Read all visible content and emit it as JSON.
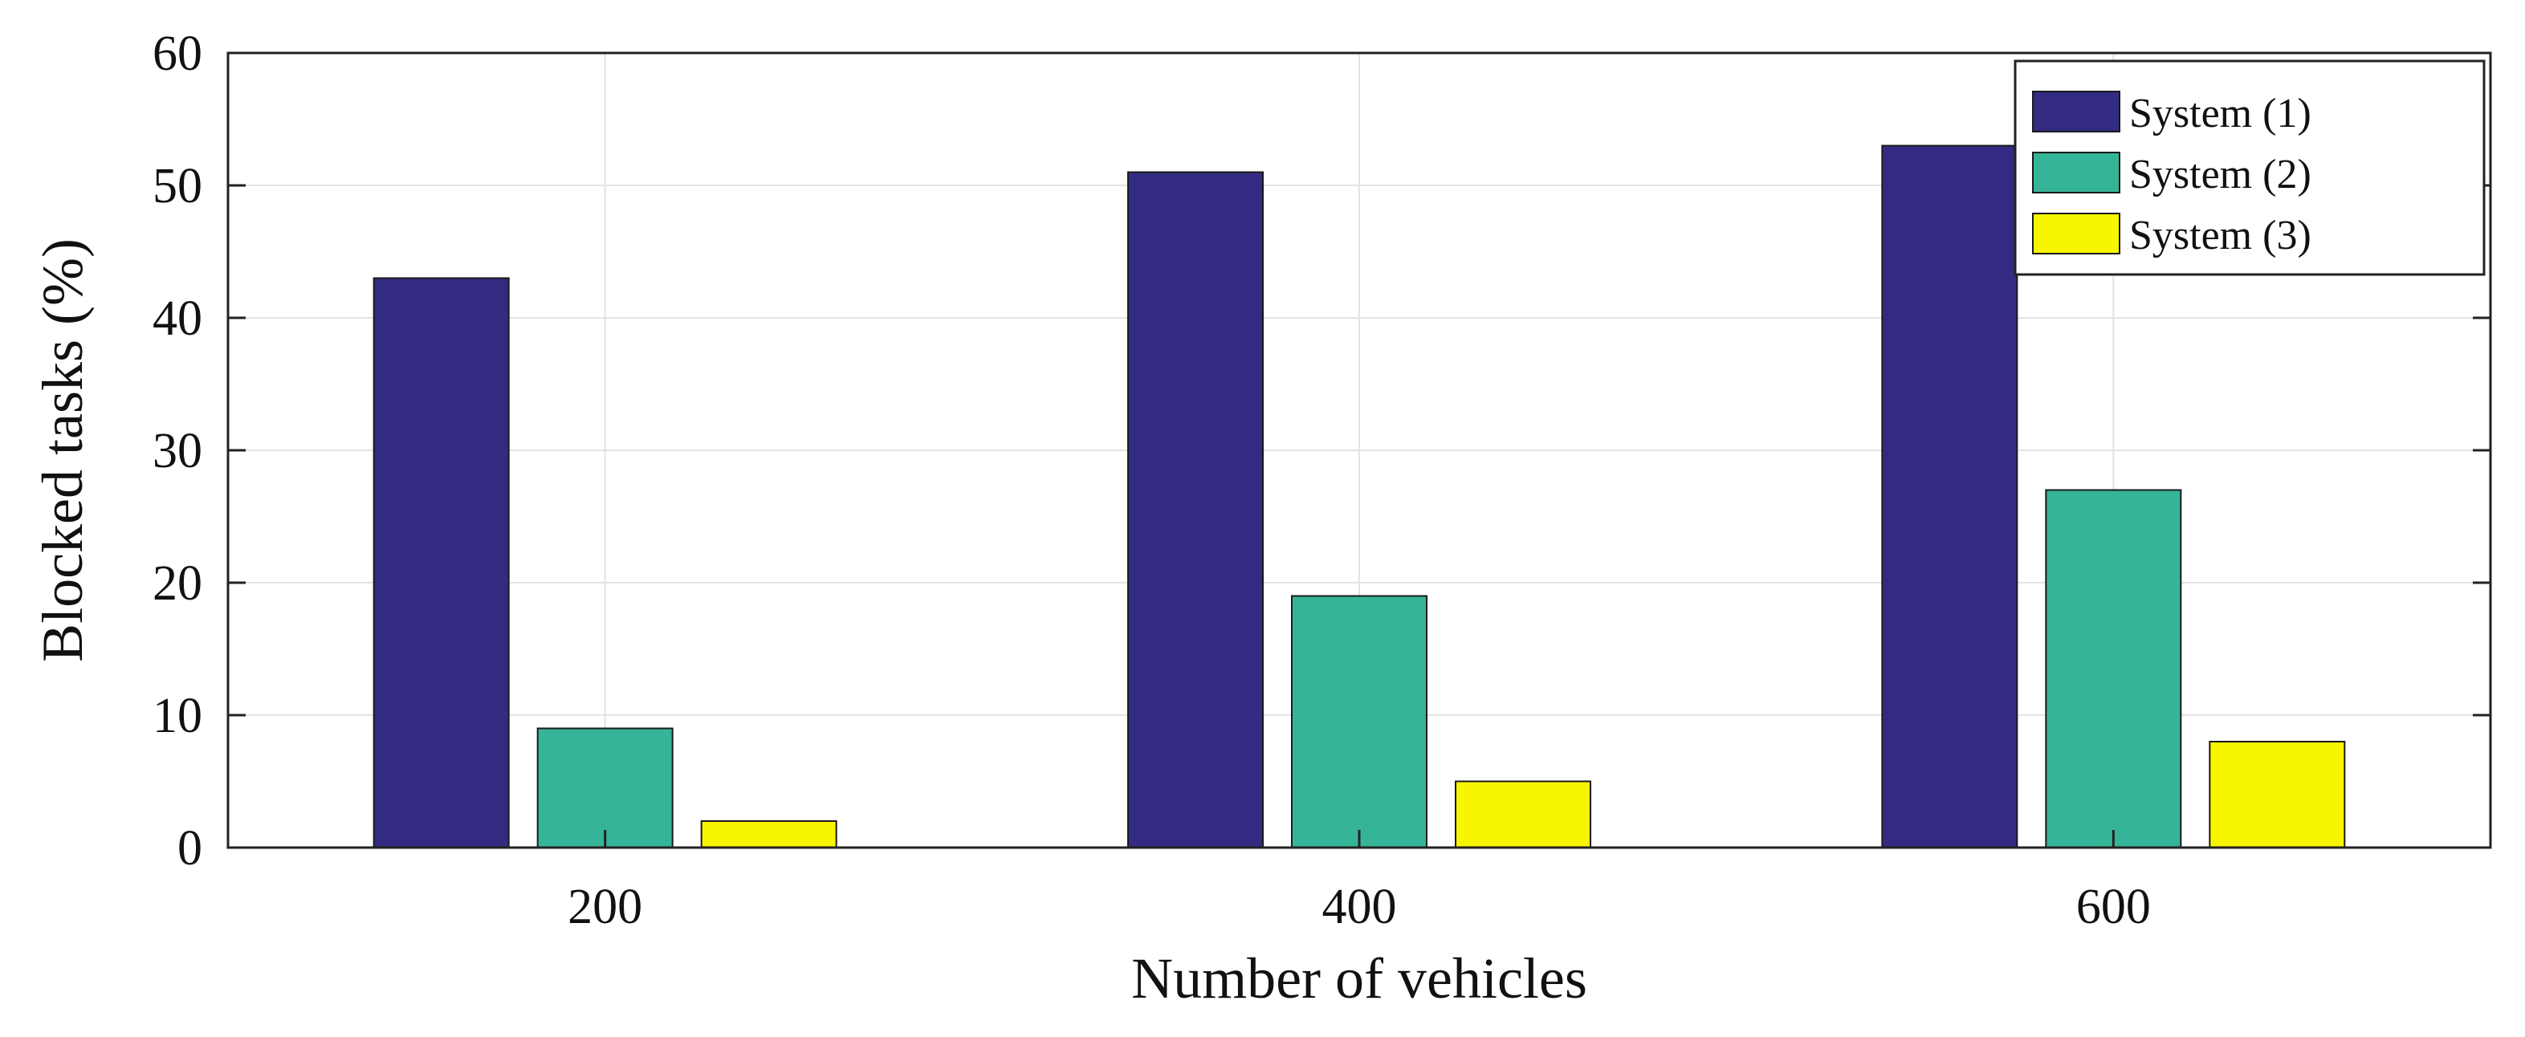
{
  "chart_data": {
    "type": "bar",
    "xlabel": "Number of vehicles",
    "ylabel": "Blocked tasks (%)",
    "categories": [
      "200",
      "400",
      "600"
    ],
    "ylim": [
      0,
      60
    ],
    "yticks": [
      0,
      10,
      20,
      30,
      40,
      50,
      60
    ],
    "grid": true,
    "legend_position": "top-right",
    "series": [
      {
        "name": "System (1)",
        "color": "#332b82",
        "values": [
          43,
          51,
          53
        ]
      },
      {
        "name": "System (2)",
        "color": "#36b497",
        "values": [
          9,
          19,
          27
        ]
      },
      {
        "name": "System (3)",
        "color": "#f8f500",
        "values": [
          2,
          5,
          8
        ]
      }
    ]
  }
}
